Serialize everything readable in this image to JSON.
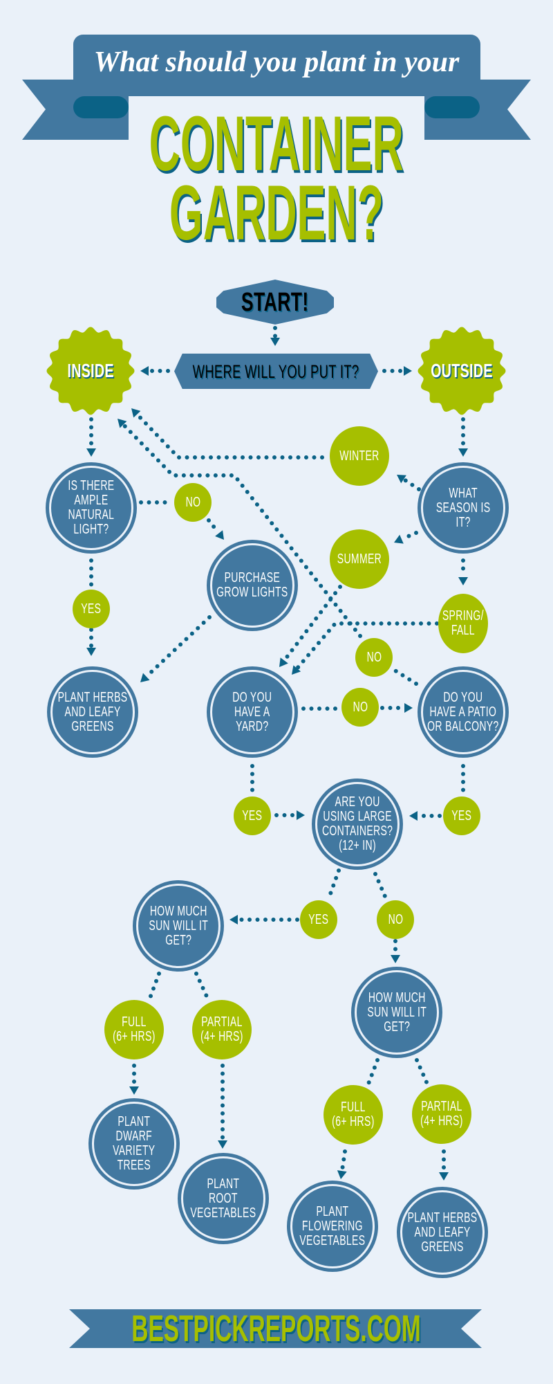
{
  "header": {
    "subtitle": "What should you plant in your",
    "title_line1": "CONTAINER",
    "title_line2": "GARDEN?"
  },
  "flow": {
    "start": "START!",
    "where": "WHERE WILL YOU PUT IT?",
    "inside": "INSIDE",
    "outside": "OUTSIDE",
    "is_there": "IS THERE\nAMPLE\nNATURAL\nLIGHT?",
    "no_light": "NO",
    "yes_light": "YES",
    "purchase": "PURCHASE\nGROW LIGHTS",
    "herbs_inside": "PLANT HERBS\nAND LEAFY\nGREENS",
    "what_season": "WHAT\nSEASON IS\nIT?",
    "winter": "WINTER",
    "summer": "SUMMER",
    "spring_fall": "SPRING/\nFALL",
    "yard": "DO YOU\nHAVE A\nYARD?",
    "no_yard": "NO",
    "patio": "DO YOU\nHAVE A PATIO\nOR BALCONY?",
    "no_patio": "NO",
    "yes_yard": "YES",
    "yes_patio": "YES",
    "large": "ARE YOU\nUSING LARGE\nCONTAINERS?\n(12+ IN)",
    "yes_large": "YES",
    "no_large": "NO",
    "sun_large": "HOW MUCH\nSUN WILL IT\nGET?",
    "sun_small": "HOW MUCH\nSUN WILL IT\nGET?",
    "full_large": "FULL\n(6+ HRS)",
    "partial_large": "PARTIAL\n(4+ HRS)",
    "full_small": "FULL\n(6+ HRS)",
    "partial_small": "PARTIAL\n(4+ HRS)",
    "dwarf": "PLANT\nDWARF\nVARIETY\nTREES",
    "root": "PLANT\nROOT\nVEGETABLES",
    "flowering": "PLANT\nFLOWERING\nVEGETABLES",
    "herbs_outside": "PLANT HERBS\nAND LEAFY\nGREENS"
  },
  "footer": {
    "site": "BESTPICKREPORTS.COM"
  },
  "colors": {
    "background": "#eaf1f9",
    "blue": "#4278a0",
    "dark_blue": "#0b6286",
    "green": "#a6bf00"
  }
}
